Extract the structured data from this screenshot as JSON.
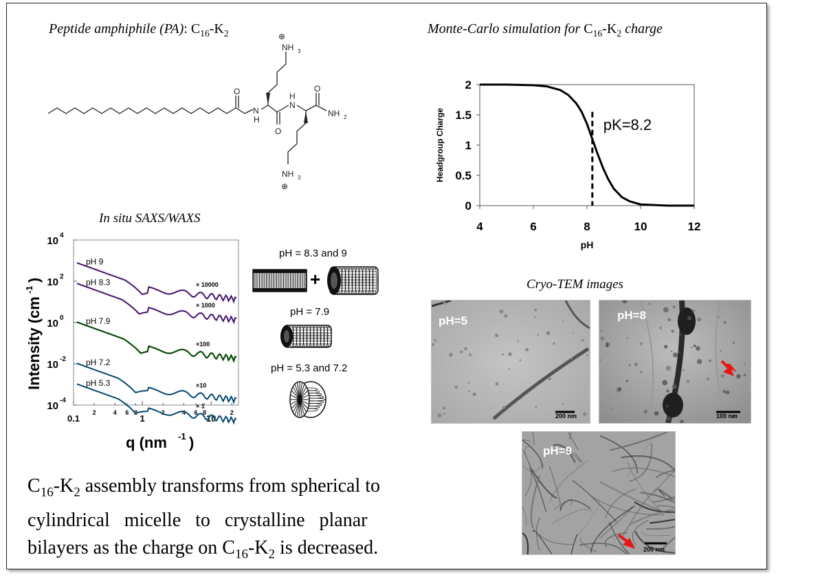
{
  "pa_header": {
    "prefix": "Peptide amphiphile (PA)",
    "colon": ":",
    "formula_c": "C",
    "formula_c_sub": "16",
    "formula_k": "-K",
    "formula_k_sub": "2"
  },
  "molecule": {
    "nh3_top": "NH",
    "nh3_top_sub": "3",
    "nh3_bottom": "NH",
    "nh3_bottom_sub": "3",
    "nh2": "NH",
    "nh2_sub": "2",
    "o_label": "O",
    "h_label": "H",
    "n_label": "N",
    "plus": "⊕"
  },
  "mc_header": {
    "prefix": "Monte-Carlo simulation for ",
    "formula_c": "C",
    "formula_c_sub": "16",
    "formula_k": "-K",
    "formula_k_sub": "2",
    "suffix": " charge"
  },
  "saxs_title": "In situ SAXS/WAXS",
  "cryo_title": "Cryo-TEM images",
  "models": [
    {
      "label": "pH = 8.3 and 9"
    },
    {
      "label": "pH = 7.9"
    },
    {
      "label": "pH = 5.3 and 7.2"
    }
  ],
  "plus_sign": "+",
  "tem_images": [
    {
      "label": "pH=5",
      "scale": "200 nm"
    },
    {
      "label": "pH=8",
      "scale": "100 nm"
    },
    {
      "label": "pH=9",
      "scale": "200 nm"
    }
  ],
  "summary": {
    "line1_c": "C",
    "line1_c_sub": "16",
    "line1_k": "-K",
    "line1_k_sub": "2",
    "line1_rest": " assembly transforms from spherical to",
    "line2": "cylindrical   micelle   to   crystalline   planar",
    "line3_a": "bilayers as the charge on C",
    "line3_c_sub": "16",
    "line3_k": "-K",
    "line3_k_sub": "2",
    "line3_b": " is decreased."
  },
  "chart_data": [
    {
      "type": "line",
      "title": "",
      "xlabel": "pH",
      "ylabel": "Headgroup Charge",
      "xlim": [
        4,
        12
      ],
      "ylim": [
        0,
        2
      ],
      "xticks": [
        "4",
        "6",
        "8",
        "10",
        "12"
      ],
      "yticks": [
        "0",
        "0.5",
        "1",
        "1.5",
        "2"
      ],
      "series": [
        {
          "x": [
            4,
            5,
            6,
            6.5,
            7,
            7.3,
            7.6,
            7.8,
            8.0,
            8.2,
            8.4,
            8.6,
            8.8,
            9.0,
            9.3,
            9.6,
            10,
            10.5,
            11,
            12
          ],
          "values": [
            2.0,
            2.0,
            1.99,
            1.97,
            1.91,
            1.83,
            1.69,
            1.55,
            1.35,
            1.1,
            0.85,
            0.62,
            0.43,
            0.28,
            0.14,
            0.07,
            0.02,
            0.01,
            0.0,
            0.0
          ]
        }
      ],
      "annotation": {
        "text": "pK=8.2",
        "x": 8.2
      }
    },
    {
      "type": "line",
      "title": "In situ SAXS/WAXS",
      "xlabel": "q (nm",
      "xlabel_sup": "-1",
      "xlabel_end": ")",
      "ylabel": "Intensity (cm",
      "ylabel_sup": "-1",
      "ylabel_end": ")",
      "xscale": "log",
      "yscale": "log",
      "xlim": [
        0.1,
        25
      ],
      "ylim": [
        0.0001,
        10000
      ],
      "xticks_major": [
        "0.1",
        "1",
        "10"
      ],
      "xticks_minor": [
        "2",
        "4",
        "6",
        "8",
        "2",
        "4",
        "6",
        "8",
        "2"
      ],
      "yticks": [
        {
          "base": "10",
          "exp": "4"
        },
        {
          "base": "10",
          "exp": "2"
        },
        {
          "base": "10",
          "exp": "0"
        },
        {
          "base": "10",
          "exp": "-2"
        },
        {
          "base": "10",
          "exp": "-4"
        }
      ],
      "series": [
        {
          "name": "pH 9",
          "scale": "× 10000",
          "color": "#9b4de0",
          "y0": 900,
          "min_q": 1.0
        },
        {
          "name": "pH 8.3",
          "scale": "× 1000",
          "color": "#9b4de0",
          "y0": 90,
          "min_q": 0.9
        },
        {
          "name": "pH 7.9",
          "scale": "×100",
          "color": "#1d8f1d",
          "y0": 1.2,
          "min_q": 0.95
        },
        {
          "name": "pH 7.2",
          "scale": "×10",
          "color": "#39a7e6",
          "y0": 0.012,
          "min_q": 0.8
        },
        {
          "name": "pH 5.3",
          "scale": "× 1",
          "color": "#39a7e6",
          "y0": 0.0012,
          "min_q": 0.8
        }
      ]
    }
  ]
}
